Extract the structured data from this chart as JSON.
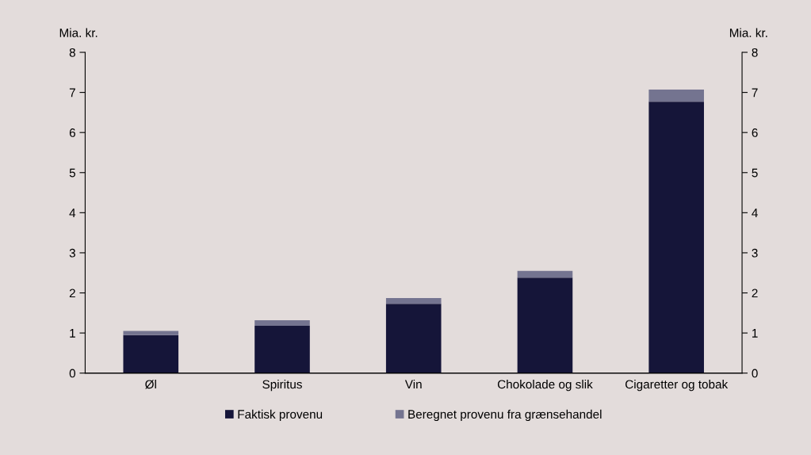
{
  "chart_data": {
    "type": "bar",
    "stacked": true,
    "categories": [
      "Øl",
      "Spiritus",
      "Vin",
      "Chokolade og slik",
      "Cigaretter og tobak"
    ],
    "series": [
      {
        "name": "Faktisk provenu",
        "color": "#151539",
        "values": [
          0.95,
          1.18,
          1.73,
          2.38,
          6.77
        ]
      },
      {
        "name": "Beregnet provenu fra grænsehandel",
        "color": "#747490",
        "values": [
          0.1,
          0.14,
          0.14,
          0.17,
          0.3
        ]
      }
    ],
    "ylabel": "Mia. kr.",
    "y2label": "Mia. kr.",
    "ylim": [
      0,
      8
    ],
    "yticks": [
      0,
      1,
      2,
      3,
      4,
      5,
      6,
      7,
      8
    ],
    "y2lim": [
      0,
      8
    ],
    "y2ticks": [
      0,
      1,
      2,
      3,
      4,
      5,
      6,
      7,
      8
    ],
    "grid": false,
    "legend": "bottom"
  }
}
